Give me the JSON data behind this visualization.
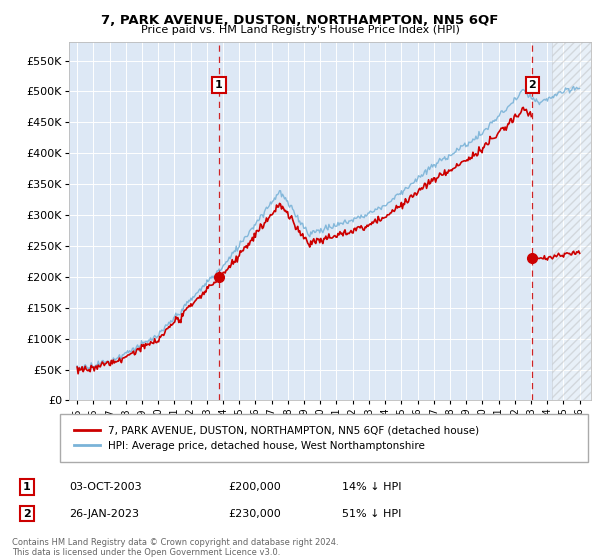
{
  "title": "7, PARK AVENUE, DUSTON, NORTHAMPTON, NN5 6QF",
  "subtitle": "Price paid vs. HM Land Registry's House Price Index (HPI)",
  "legend_line1": "7, PARK AVENUE, DUSTON, NORTHAMPTON, NN5 6QF (detached house)",
  "legend_line2": "HPI: Average price, detached house, West Northamptonshire",
  "annotation1_label": "1",
  "annotation1_date": "03-OCT-2003",
  "annotation1_price": "£200,000",
  "annotation1_hpi": "14% ↓ HPI",
  "annotation1_year": 2003.75,
  "annotation1_value": 200000,
  "annotation2_label": "2",
  "annotation2_date": "26-JAN-2023",
  "annotation2_price": "£230,000",
  "annotation2_hpi": "51% ↓ HPI",
  "annotation2_year": 2023.07,
  "annotation2_value": 230000,
  "hpi_color": "#7ab3d8",
  "price_color": "#cc0000",
  "vline_color": "#cc0000",
  "bg_color": "#dde8f5",
  "footer": "Contains HM Land Registry data © Crown copyright and database right 2024.\nThis data is licensed under the Open Government Licence v3.0.",
  "ylim": [
    0,
    580000
  ],
  "yticks": [
    0,
    50000,
    100000,
    150000,
    200000,
    250000,
    300000,
    350000,
    400000,
    450000,
    500000,
    550000
  ],
  "xlabel_years": [
    1995,
    1996,
    1997,
    1998,
    1999,
    2000,
    2001,
    2002,
    2003,
    2004,
    2005,
    2006,
    2007,
    2008,
    2009,
    2010,
    2011,
    2012,
    2013,
    2014,
    2015,
    2016,
    2017,
    2018,
    2019,
    2020,
    2021,
    2022,
    2023,
    2024,
    2025,
    2026
  ]
}
